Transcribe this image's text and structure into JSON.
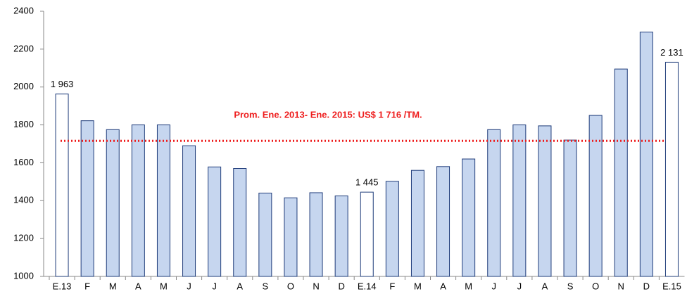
{
  "chart_data": {
    "type": "bar",
    "categories": [
      "E.13",
      "F",
      "M",
      "A",
      "M",
      "J",
      "J",
      "A",
      "S",
      "O",
      "N",
      "D",
      "E.14",
      "F",
      "M",
      "A",
      "M",
      "J",
      "J",
      "A",
      "S",
      "O",
      "N",
      "D",
      "E.15"
    ],
    "values": [
      1963,
      1822,
      1775,
      1800,
      1800,
      1690,
      1578,
      1570,
      1440,
      1415,
      1442,
      1425,
      1445,
      1502,
      1560,
      1580,
      1620,
      1775,
      1800,
      1795,
      1720,
      1850,
      2095,
      2290,
      2131
    ],
    "value_labels": [
      "1 963",
      null,
      null,
      null,
      null,
      null,
      null,
      null,
      null,
      null,
      null,
      null,
      "1 445",
      null,
      null,
      null,
      null,
      null,
      null,
      null,
      null,
      null,
      null,
      null,
      "2 131"
    ],
    "colors": [
      "#ffffff",
      "#c6d6ef",
      "#c6d6ef",
      "#c6d6ef",
      "#c6d6ef",
      "#c6d6ef",
      "#c6d6ef",
      "#c6d6ef",
      "#c6d6ef",
      "#c6d6ef",
      "#c6d6ef",
      "#c6d6ef",
      "#ffffff",
      "#c6d6ef",
      "#c6d6ef",
      "#c6d6ef",
      "#c6d6ef",
      "#c6d6ef",
      "#c6d6ef",
      "#c6d6ef",
      "#c6d6ef",
      "#c6d6ef",
      "#c6d6ef",
      "#c6d6ef",
      "#ffffff"
    ],
    "border_color": "#1f3c7a",
    "ylim": [
      1000,
      2400
    ],
    "yticks": [
      1000,
      1200,
      1400,
      1600,
      1800,
      2000,
      2200,
      2400
    ],
    "grid": false,
    "reference_line": {
      "value": 1716,
      "label": "Prom. Ene. 2013- Ene. 2015: US$ 1 716 /TM.",
      "color": "#ee1c1c"
    }
  }
}
